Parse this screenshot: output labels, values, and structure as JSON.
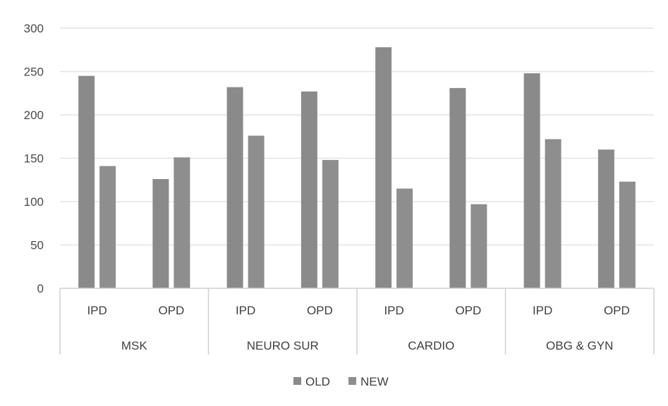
{
  "chart_data": {
    "type": "bar",
    "groups": [
      "MSK",
      "NEURO SUR",
      "CARDIO",
      "OBG & GYN"
    ],
    "subcategories": [
      "IPD",
      "OPD",
      "IPD",
      "OPD",
      "IPD",
      "OPD",
      "IPD",
      "OPD"
    ],
    "categories": [
      "MSK IPD",
      "MSK OPD",
      "NEURO SUR IPD",
      "NEURO SUR OPD",
      "CARDIO IPD",
      "CARDIO OPD",
      "OBG & GYN IPD",
      "OBG & GYN OPD"
    ],
    "series": [
      {
        "name": "OLD",
        "values": [
          245,
          126,
          232,
          227,
          278,
          231,
          248,
          160
        ]
      },
      {
        "name": "NEW",
        "values": [
          141,
          151,
          176,
          148,
          115,
          97,
          172,
          123
        ]
      }
    ],
    "y_ticks": [
      "0",
      "50",
      "100",
      "150",
      "200",
      "250",
      "300"
    ],
    "ylim": [
      0,
      300
    ],
    "grid": true,
    "legend_position": "bottom",
    "colors": {
      "OLD": "#8a8a8a",
      "NEW": "#8e8e8e",
      "grid": "#e2e2ea",
      "axis": "#cfcfcf"
    }
  }
}
